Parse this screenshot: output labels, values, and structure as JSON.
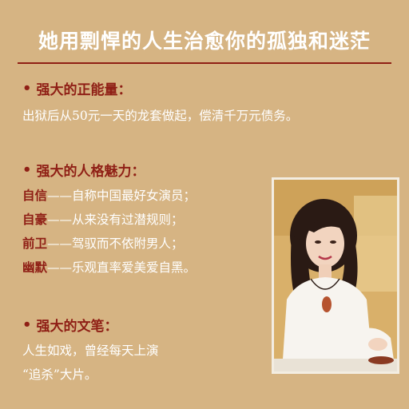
{
  "title": "她用剽悍的人生治愈你的孤独和迷茫",
  "sections": {
    "energy": {
      "heading": "强大的正能量：",
      "text": "出狱后从50元一天的龙套做起，偿清千万元债务。"
    },
    "charm": {
      "heading": "强大的人格魅力：",
      "items": [
        {
          "key": "自信",
          "dash": "——",
          "text": "自称中国最好女演员；"
        },
        {
          "key": "自豪",
          "dash": "——",
          "text": "从来没有过潜规则；"
        },
        {
          "key": "前卫",
          "dash": "——",
          "text": "驾驭而不依附男人；"
        },
        {
          "key": "幽默",
          "dash": "——",
          "text": "乐观直率爱美爱自黑。"
        }
      ]
    },
    "pen": {
      "heading": "强大的文笔：",
      "line1": "人生如戏，曾经每天上演",
      "line2": "“追杀”大片。"
    }
  },
  "bullet": "•",
  "colors": {
    "background": "#d6b483",
    "accent": "#8f1f15",
    "text": "#ffffff"
  }
}
